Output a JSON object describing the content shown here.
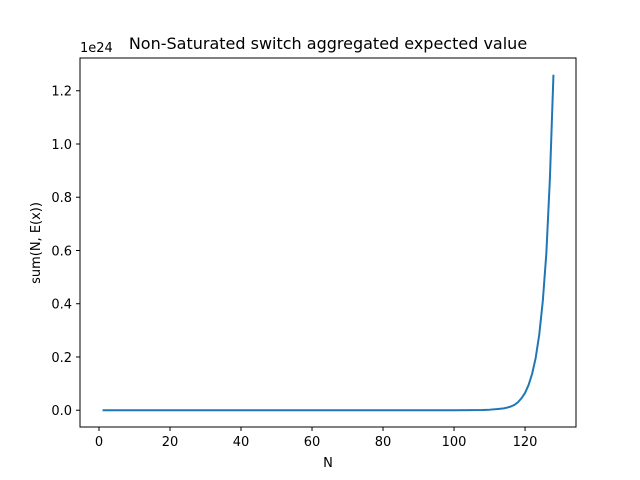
{
  "chart_data": {
    "type": "line",
    "title": "Non-Saturated switch aggregated expected value",
    "xlabel": "N",
    "ylabel": "sum(N, E(x))",
    "offset_text": "1e24",
    "y_multiplier": 1e+24,
    "xlim": [
      -5.35,
      134.35
    ],
    "ylim": [
      -0.063,
      1.323
    ],
    "x_ticks": [
      0,
      20,
      40,
      60,
      80,
      100,
      120
    ],
    "x_tick_labels": [
      "0",
      "20",
      "40",
      "60",
      "80",
      "100",
      "120"
    ],
    "y_ticks": [
      0.0,
      0.2,
      0.4,
      0.6,
      0.8,
      1.0,
      1.2
    ],
    "y_tick_labels": [
      "0.0",
      "0.2",
      "0.4",
      "0.6",
      "0.8",
      "1.0",
      "1.2"
    ],
    "grid": false,
    "series": [
      {
        "color": "#1f77b4",
        "x": [
          1,
          100,
          105,
          108,
          110,
          112,
          114,
          115,
          116,
          117,
          118,
          119,
          120,
          121,
          122,
          123,
          124,
          125,
          126,
          127,
          128
        ],
        "y": [
          0.0,
          0.0,
          0.0005,
          0.001,
          0.002,
          0.004,
          0.007,
          0.01,
          0.014,
          0.02,
          0.03,
          0.045,
          0.065,
          0.095,
          0.137,
          0.197,
          0.284,
          0.41,
          0.59,
          0.87,
          1.26
        ]
      }
    ]
  }
}
